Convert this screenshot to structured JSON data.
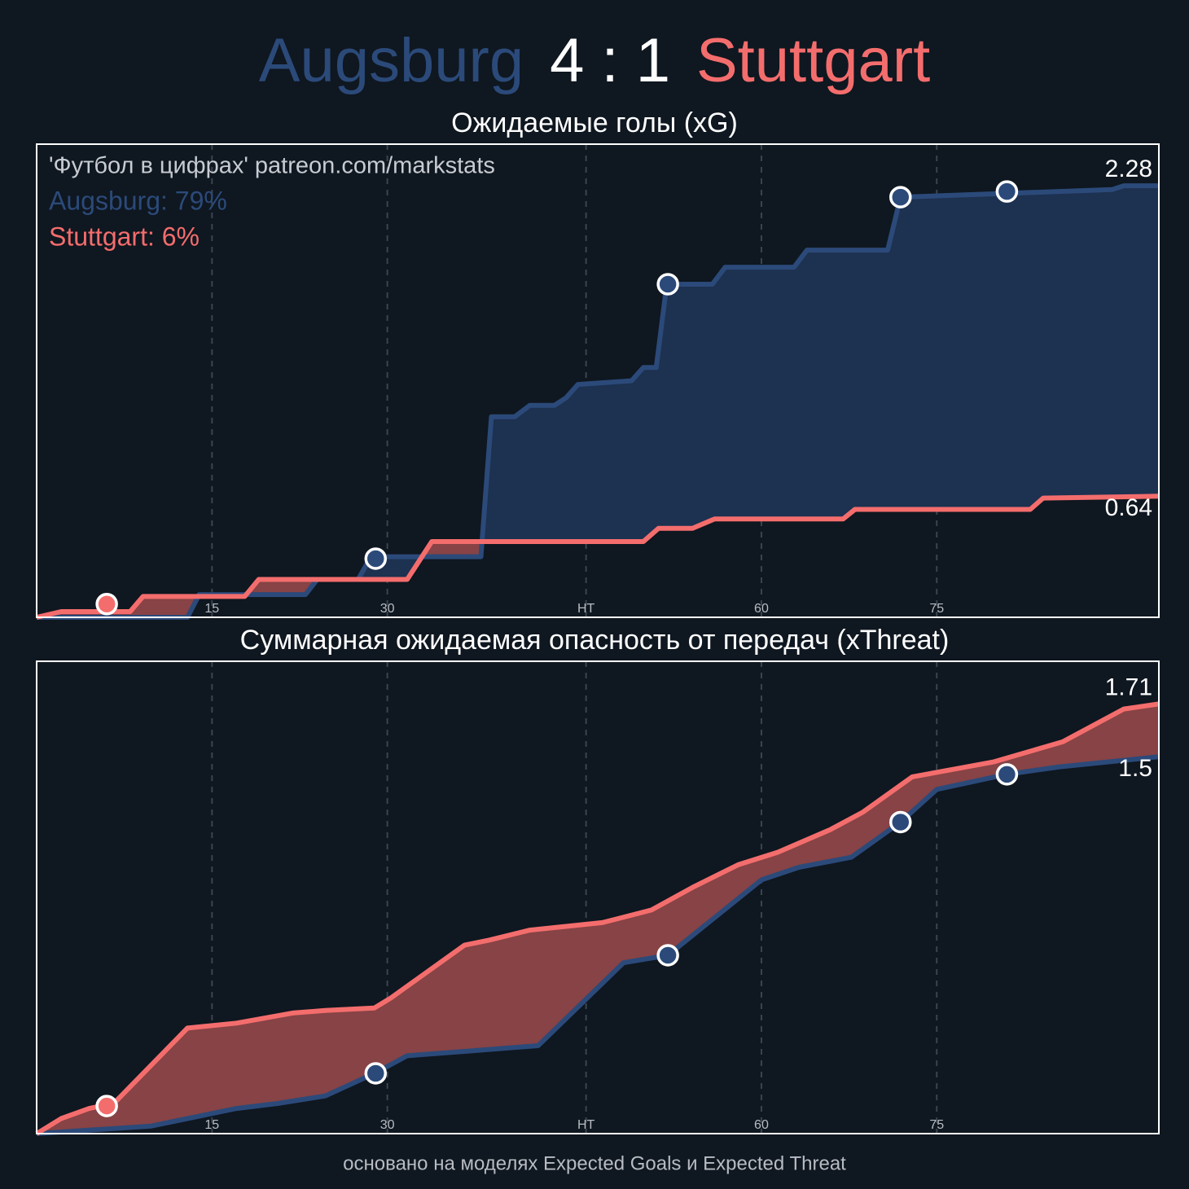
{
  "header": {
    "home": "Augsburg",
    "score": "4 : 1",
    "away": "Stuttgart",
    "home_color": "#2b4a7a",
    "away_color": "#f46d6d"
  },
  "chart_data": [
    {
      "type": "line",
      "title": "Ожидаемые голы (xG)",
      "annotations": [
        "'Футбол в цифрах' patreon.com/markstats",
        "Augsburg: 79%",
        "Stuttgart: 6%"
      ],
      "xlim": [
        0,
        96
      ],
      "ylim": [
        0,
        2.5
      ],
      "xticks": [
        15,
        30,
        {
          "value": 47,
          "label": "HT"
        },
        {
          "value": 62,
          "label": "60"
        },
        {
          "value": 77,
          "label": "75"
        }
      ],
      "grid": true,
      "series": [
        {
          "color": "#2b4a7a",
          "fill": "#1d3150",
          "x": [
            0,
            12.9,
            13.9,
            23.0,
            24.0,
            27.5,
            28.6,
            38.0,
            38.9,
            40.9,
            42.2,
            44.3,
            45.3,
            46.3,
            50.9,
            51.9,
            53.0,
            53.9,
            57.8,
            58.9,
            64.8,
            65.9,
            72.8,
            73.9,
            92.0,
            93.0,
            96.0
          ],
          "values": [
            0,
            0,
            0.12,
            0.12,
            0.2,
            0.2,
            0.32,
            0.32,
            1.06,
            1.06,
            1.12,
            1.12,
            1.16,
            1.23,
            1.25,
            1.32,
            1.32,
            1.76,
            1.76,
            1.85,
            1.85,
            1.94,
            1.94,
            2.22,
            2.26,
            2.28,
            2.28
          ],
          "markers": {
            "x": [
              29.0,
              54.0,
              73.9,
              83.0
            ],
            "values": [
              0.31,
              1.76,
              2.22,
              2.25
            ]
          }
        },
        {
          "color": "#f46d6d",
          "fill": "#874345",
          "x": [
            0,
            2.1,
            8.0,
            9.1,
            17.8,
            19.0,
            31.7,
            33.8,
            51.9,
            53.2,
            56.1,
            58.0,
            69.0,
            70.0,
            85.0,
            86.1,
            96.0
          ],
          "values": [
            0,
            0.03,
            0.03,
            0.11,
            0.11,
            0.2,
            0.2,
            0.4,
            0.4,
            0.47,
            0.47,
            0.52,
            0.52,
            0.57,
            0.57,
            0.63,
            0.64
          ],
          "markers": {
            "x": [
              6.0
            ],
            "values": [
              0.07
            ]
          }
        }
      ]
    },
    {
      "type": "line",
      "title": "Суммарная ожидаемая опасность от передач (xThreat)",
      "xlim": [
        0,
        96
      ],
      "ylim": [
        0,
        1.88
      ],
      "xticks": [
        15,
        30,
        {
          "value": 47,
          "label": "HT"
        },
        {
          "value": 62,
          "label": "60"
        },
        {
          "value": 77,
          "label": "75"
        }
      ],
      "grid": true,
      "series": [
        {
          "color": "#2b4a7a",
          "fill": "#1d3150",
          "x": [
            0,
            9.8,
            12.9,
            17.1,
            20.6,
            24.7,
            28.9,
            31.7,
            37.3,
            42.9,
            50.2,
            54.0,
            62.0,
            65.2,
            69.7,
            73.9,
            77.0,
            83.0,
            87.5,
            96.0
          ],
          "values": [
            0,
            0.03,
            0.06,
            0.1,
            0.12,
            0.15,
            0.24,
            0.31,
            0.33,
            0.35,
            0.68,
            0.71,
            1.01,
            1.06,
            1.1,
            1.24,
            1.37,
            1.43,
            1.46,
            1.5
          ],
          "markers": {
            "x": [
              29.0,
              54.0,
              73.9,
              83.0
            ],
            "values": [
              0.24,
              0.71,
              1.24,
              1.43
            ]
          }
        },
        {
          "color": "#f46d6d",
          "fill": "#874345",
          "x": [
            0,
            2.1,
            4.5,
            6.6,
            12.9,
            17.1,
            21.9,
            24.7,
            28.9,
            30.3,
            36.6,
            38.7,
            42.2,
            48.4,
            52.6,
            56.1,
            60.0,
            63.4,
            67.9,
            70.7,
            74.9,
            78.4,
            81.9,
            87.8,
            93.0,
            96.0
          ],
          "values": [
            0,
            0.06,
            0.1,
            0.12,
            0.42,
            0.44,
            0.48,
            0.49,
            0.5,
            0.54,
            0.75,
            0.77,
            0.81,
            0.84,
            0.89,
            0.98,
            1.07,
            1.12,
            1.21,
            1.28,
            1.42,
            1.45,
            1.48,
            1.56,
            1.69,
            1.71
          ],
          "markers": {
            "x": [
              6.0
            ],
            "values": [
              0.11
            ]
          }
        }
      ]
    }
  ],
  "footer": "основано на моделях Expected Goals и Expected Threat"
}
